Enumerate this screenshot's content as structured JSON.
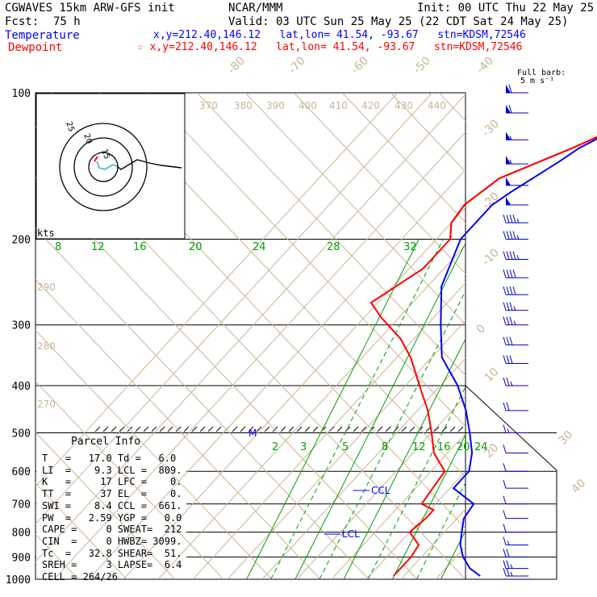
{
  "header": {
    "model": "CGWAVES 15km ARW-GFS init",
    "source": "NCAR/MMM",
    "init": "Init: 00 UTC Thu 22 May 25",
    "fcst_label": "Fcst:",
    "fcst_value": "75 h",
    "valid": "Valid: 03 UTC Sun 25 May 25 (22 CDT Sat 24 May 25)",
    "temp_label": "Temperature",
    "dew_label": "Dewpoint",
    "temp_loc": "x,y=212.40,146.12   lat,lon= 41.54, -93.67   stn=KDSM,72546",
    "dew_loc": "☆ x,y=212.40,146.12   lat,lon= 41.54, -93.67   stn=KDSM,72546",
    "barb_note1": "Full barb:",
    "barb_note2": "5 m s⁻¹"
  },
  "colors": {
    "temperature": "#0000ff",
    "dewpoint": "#ff0000",
    "isotherm": "#c8b496",
    "mixing_ratio": "#00a000",
    "theta": "#c8b496"
  },
  "parcel_info": {
    "title": "Parcel Info",
    "rows": [
      "T   =   17.0 Td =   6.0",
      "LI  =    9.3 LCL =  809.",
      "K   =     17 LFC =    0.",
      "TT  =     37 EL  =    0.",
      "SWI =    8.4 CCL =  661.",
      "PW  =   2.59 YGP =   0.0",
      "CAPE =     0 SWEAT=  212",
      "CIN  =     0 HWBZ= 3099.",
      "Tc  =   32.8 SHEAR=  51.",
      "SREH =     3 LAPSE=  6.4",
      "CELL = 264/26"
    ]
  },
  "chart_data": {
    "type": "line",
    "title": "Skew-T log-P sounding",
    "y_axis": {
      "label": "",
      "scale": "log-pressure",
      "ticks": [
        100,
        200,
        300,
        400,
        500,
        600,
        700,
        800,
        900,
        1000
      ]
    },
    "isotherm_labels": [
      "-80",
      "-70",
      "-60",
      "-50",
      "-40",
      "-30",
      "-20",
      "-10",
      "0",
      "10",
      "20",
      "30",
      "40"
    ],
    "theta_labels": [
      "370",
      "380",
      "390",
      "400",
      "410",
      "420",
      "430",
      "440",
      "290",
      "280",
      "270"
    ],
    "mixing_ratio_labels_upper": [
      "8",
      "12",
      "16",
      "20",
      "24",
      "28",
      "32"
    ],
    "mixing_ratio_labels_lower": [
      "2",
      "3",
      "5",
      "8",
      "12",
      "16",
      "20",
      "24"
    ],
    "hodograph_rings": [
      "15",
      "20",
      "25"
    ],
    "hodograph_units": "kts",
    "annotations": [
      "CCL",
      "LCL",
      "M"
    ],
    "series": [
      {
        "name": "Temperature",
        "points": [
          [
            100,
            -44
          ],
          [
            105,
            -46
          ],
          [
            120,
            -48
          ],
          [
            130,
            -53
          ],
          [
            138,
            -55
          ],
          [
            145,
            -57
          ],
          [
            160,
            -61
          ],
          [
            170,
            -63
          ],
          [
            185,
            -63
          ],
          [
            200,
            -63
          ],
          [
            250,
            -56
          ],
          [
            300,
            -46
          ],
          [
            350,
            -37
          ],
          [
            400,
            -25
          ],
          [
            450,
            -16
          ],
          [
            500,
            -9
          ],
          [
            550,
            -3
          ],
          [
            600,
            1
          ],
          [
            650,
            1
          ],
          [
            700,
            11
          ],
          [
            750,
            12
          ],
          [
            800,
            15
          ],
          [
            850,
            18
          ],
          [
            900,
            22
          ],
          [
            950,
            27
          ],
          [
            985,
            32
          ]
        ]
      },
      {
        "name": "Dewpoint",
        "points": [
          [
            100,
            -37
          ],
          [
            115,
            -45
          ],
          [
            130,
            -55
          ],
          [
            150,
            -68
          ],
          [
            170,
            -71
          ],
          [
            185,
            -70
          ],
          [
            200,
            -66
          ],
          [
            230,
            -66
          ],
          [
            270,
            -72
          ],
          [
            290,
            -65
          ],
          [
            320,
            -54
          ],
          [
            350,
            -46
          ],
          [
            400,
            -36
          ],
          [
            450,
            -27
          ],
          [
            500,
            -20
          ],
          [
            550,
            -14
          ],
          [
            600,
            -6
          ],
          [
            650,
            -5
          ],
          [
            700,
            -4
          ],
          [
            720,
            1
          ],
          [
            750,
            1
          ],
          [
            800,
            0
          ],
          [
            850,
            6
          ],
          [
            900,
            7
          ],
          [
            950,
            7
          ],
          [
            985,
            7
          ]
        ]
      }
    ],
    "winds": [
      [
        100,
        270,
        60
      ],
      [
        110,
        270,
        60
      ],
      [
        125,
        270,
        55
      ],
      [
        140,
        270,
        55
      ],
      [
        155,
        270,
        50
      ],
      [
        170,
        265,
        50
      ],
      [
        185,
        265,
        45
      ],
      [
        200,
        265,
        45
      ],
      [
        220,
        265,
        45
      ],
      [
        240,
        260,
        40
      ],
      [
        260,
        260,
        40
      ],
      [
        280,
        260,
        35
      ],
      [
        300,
        260,
        35
      ],
      [
        330,
        255,
        30
      ],
      [
        360,
        255,
        30
      ],
      [
        400,
        250,
        25
      ],
      [
        450,
        245,
        20
      ],
      [
        500,
        240,
        15
      ],
      [
        550,
        230,
        12
      ],
      [
        600,
        220,
        10
      ],
      [
        650,
        200,
        8
      ],
      [
        700,
        190,
        8
      ],
      [
        750,
        180,
        8
      ],
      [
        800,
        170,
        10
      ],
      [
        850,
        165,
        15
      ],
      [
        900,
        160,
        20
      ],
      [
        950,
        155,
        25
      ],
      [
        985,
        150,
        25
      ]
    ]
  }
}
